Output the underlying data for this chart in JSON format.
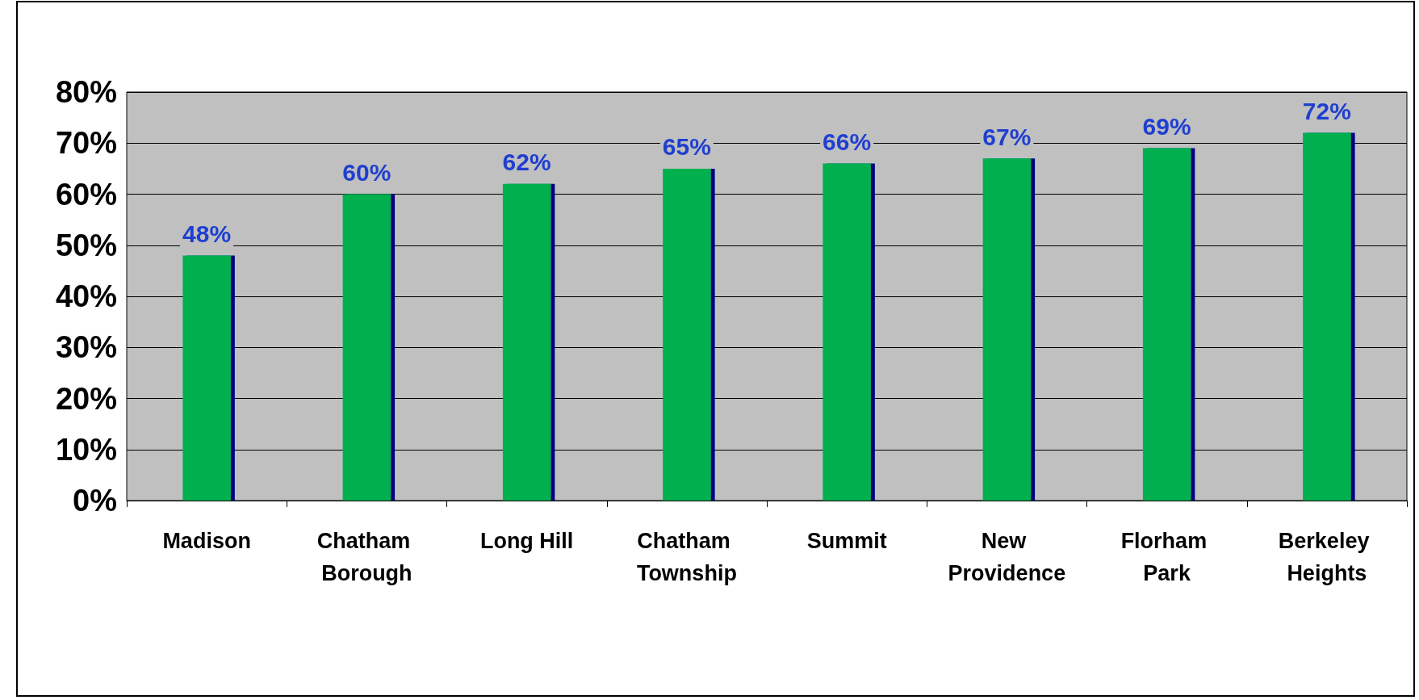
{
  "chart_data": {
    "type": "bar",
    "categories": [
      "Madison",
      "Chatham Borough",
      "Long Hill",
      "Chatham Township",
      "Summit",
      "New Providence",
      "Florham Park",
      "Berkeley Heights"
    ],
    "values": [
      48,
      60,
      62,
      65,
      66,
      67,
      69,
      72
    ],
    "value_labels": [
      "48%",
      "60%",
      "62%",
      "65%",
      "66%",
      "67%",
      "69%",
      "72%"
    ],
    "color": "#00b050",
    "ylim": [
      0,
      80
    ],
    "yticks": [
      {
        "value": 0,
        "label": "0%"
      },
      {
        "value": 10,
        "label": "10%"
      },
      {
        "value": 20,
        "label": "20%"
      },
      {
        "value": 30,
        "label": "30%"
      },
      {
        "value": 40,
        "label": "40%"
      },
      {
        "value": 50,
        "label": "50%"
      },
      {
        "value": 60,
        "label": "60%"
      },
      {
        "value": 70,
        "label": "70%"
      },
      {
        "value": 80,
        "label": "80%"
      }
    ],
    "grid": "y"
  }
}
